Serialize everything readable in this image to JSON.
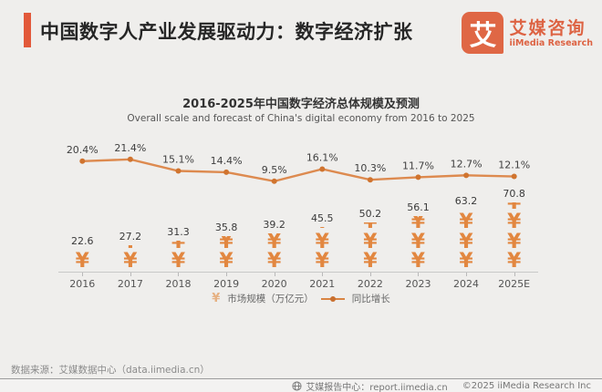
{
  "header": {
    "title": "中国数字人产业发展驱动力：数字经济扩张",
    "logo": {
      "mark": "艾",
      "name_cn": "艾媒咨询",
      "name_en": "iiMedia Research"
    }
  },
  "chart": {
    "title": "2016-2025年中国数字经济总体规模及预测",
    "subtitle": "Overall scale and forecast of China's digital economy from 2016 to 2025",
    "legend_market": "市场规模（万亿元）",
    "legend_growth": "同比增长"
  },
  "chart_data": {
    "type": "bar",
    "subtype": "pictogram-bar-with-line",
    "title": "2016-2025年中国数字经济总体规模及预测",
    "categories": [
      "2016",
      "2017",
      "2018",
      "2019",
      "2020",
      "2021",
      "2022",
      "2023",
      "2024",
      "2025E"
    ],
    "series": [
      {
        "name": "市场规模（万亿元）",
        "type": "pictogram-bar",
        "unit": "万亿元",
        "values": [
          22.6,
          27.2,
          31.3,
          35.8,
          39.2,
          45.5,
          50.2,
          56.1,
          63.2,
          70.8
        ]
      },
      {
        "name": "同比增长",
        "type": "line",
        "unit": "%",
        "values": [
          20.4,
          21.4,
          15.1,
          14.4,
          9.5,
          16.1,
          10.3,
          11.7,
          12.7,
          12.1
        ]
      }
    ],
    "xlabel": "",
    "ylabel": "",
    "grid": false,
    "legend_position": "bottom",
    "colors": {
      "bar": "#e28740",
      "line": "#dd8a4f",
      "dot": "#d0742f",
      "accent": "#e2593a",
      "label": "#3f3f3f"
    }
  },
  "footer": {
    "source": "数据来源：艾媒数据中心（data.iimedia.cn）",
    "report_center": "艾媒报告中心：report.iimedia.cn",
    "copyright": "©2025  iiMedia Research  Inc"
  }
}
